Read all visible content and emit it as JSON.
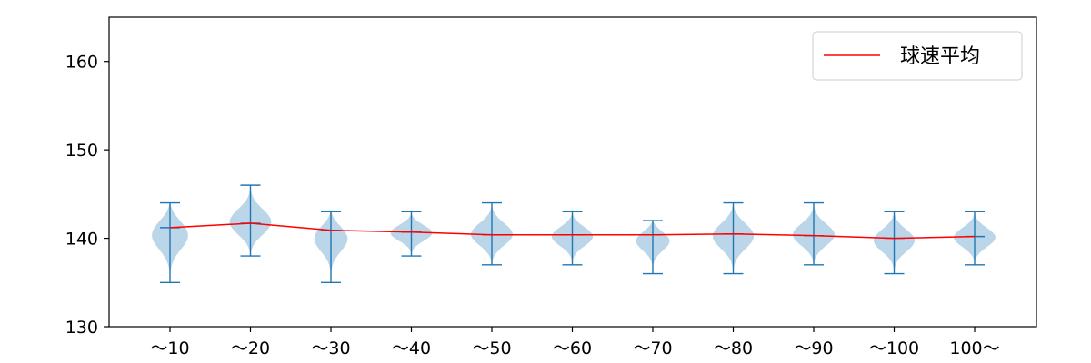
{
  "chart_data": {
    "type": "violin",
    "title": "",
    "xlabel": "",
    "ylabel": "",
    "ylim": [
      130,
      165
    ],
    "yticks": [
      "130",
      "140",
      "150",
      "160"
    ],
    "categories": [
      "～10",
      "～20",
      "～30",
      "～40",
      "～50",
      "～60",
      "～70",
      "～80",
      "～90",
      "～100",
      "100～"
    ],
    "violins": [
      {
        "min": 135,
        "max": 144,
        "mean": 141.2
      },
      {
        "min": 138,
        "max": 146,
        "mean": 141.7
      },
      {
        "min": 135,
        "max": 143,
        "mean": 140.9
      },
      {
        "min": 138,
        "max": 143,
        "mean": 140.7
      },
      {
        "min": 137,
        "max": 144,
        "mean": 140.4
      },
      {
        "min": 137,
        "max": 143,
        "mean": 140.4
      },
      {
        "min": 136,
        "max": 142,
        "mean": 140.4
      },
      {
        "min": 136,
        "max": 144,
        "mean": 140.5
      },
      {
        "min": 137,
        "max": 144,
        "mean": 140.3
      },
      {
        "min": 136,
        "max": 143,
        "mean": 140.0
      },
      {
        "min": 137,
        "max": 143,
        "mean": 140.2
      }
    ],
    "series": [
      {
        "name": "球速平均",
        "values": [
          141.2,
          141.7,
          140.9,
          140.7,
          140.4,
          140.4,
          140.4,
          140.5,
          140.3,
          140.0,
          140.2
        ]
      }
    ],
    "legend": {
      "position": "top-right",
      "label": "球速平均"
    },
    "grid": false,
    "colors": {
      "violin_fill": "#1f77b4",
      "violin_edge": "#1f77b4",
      "mean_line": "#ff0000",
      "axis": "#000000"
    }
  }
}
